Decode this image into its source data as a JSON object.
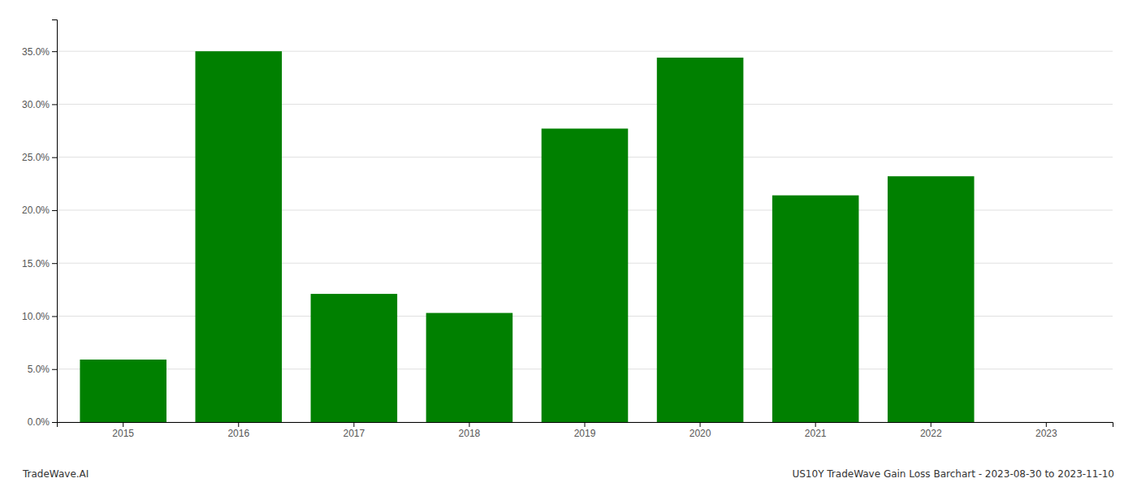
{
  "chart_data": {
    "type": "bar",
    "title": "US10Y TradeWave Gain Loss Barchart - 2023-08-30 to 2023-11-10",
    "annotations": [
      "TradeWave.AI"
    ],
    "categories": [
      "2015",
      "2016",
      "2017",
      "2018",
      "2019",
      "2020",
      "2021",
      "2022",
      "2023"
    ],
    "values": [
      0.059,
      0.35,
      0.121,
      0.103,
      0.277,
      0.344,
      0.214,
      0.232,
      null
    ],
    "color": "#008000",
    "ylim": [
      0.0,
      0.38
    ],
    "yticks": [
      {
        "value": 0.0,
        "label": "0.0%"
      },
      {
        "value": 0.05,
        "label": "5.0%"
      },
      {
        "value": 0.1,
        "label": "10.0%"
      },
      {
        "value": 0.15,
        "label": "15.0%"
      },
      {
        "value": 0.2,
        "label": "20.0%"
      },
      {
        "value": 0.25,
        "label": "25.0%"
      },
      {
        "value": 0.3,
        "label": "30.0%"
      },
      {
        "value": 0.35,
        "label": "35.0%"
      }
    ],
    "grid": true
  }
}
